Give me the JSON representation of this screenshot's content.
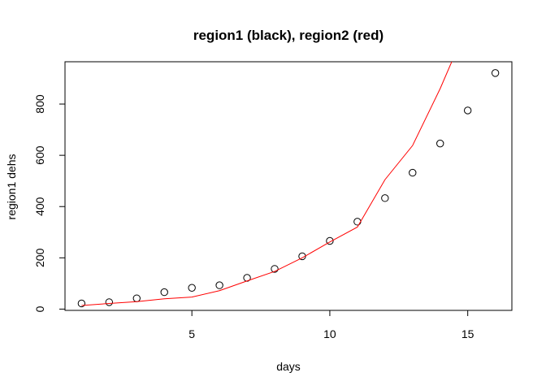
{
  "chart_data": {
    "type": "scatter",
    "title": "region1 (black), region2 (red)",
    "xlabel": "days",
    "ylabel": "region1 dehs",
    "xlim": [
      0.4,
      16.6
    ],
    "ylim": [
      -5,
      965
    ],
    "xticks": [
      5,
      10,
      15
    ],
    "yticks": [
      0,
      200,
      400,
      600,
      800
    ],
    "grid": false,
    "series": [
      {
        "kind": "points",
        "color": "#000000",
        "x": [
          1,
          2,
          3,
          4,
          5,
          6,
          7,
          8,
          9,
          10,
          11,
          12,
          13,
          14,
          15,
          16
        ],
        "values": [
          22,
          27,
          42,
          66,
          83,
          93,
          122,
          157,
          206,
          266,
          341,
          433,
          532,
          646,
          775,
          921
        ]
      },
      {
        "kind": "line",
        "color": "#ff0000",
        "x": [
          1,
          2,
          3,
          4,
          5,
          6,
          7,
          8,
          9,
          10,
          11,
          12,
          13,
          14,
          15
        ],
        "values": [
          14,
          22,
          29,
          40,
          47,
          72,
          110,
          147,
          200,
          262,
          320,
          505,
          638,
          860,
          1110
        ]
      }
    ]
  }
}
